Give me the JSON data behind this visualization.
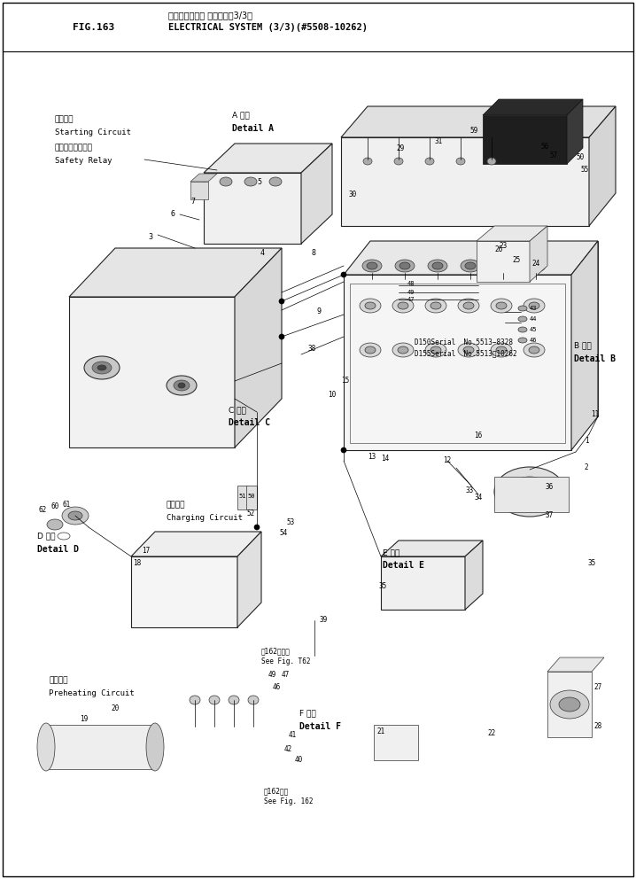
{
  "title_japanese": "エレクトリカル システム（3/3）",
  "title_english": "ELECTRICAL SYSTEM (3/3)(#5508-10262)",
  "fig_label": "FIG.163",
  "bg_color": "#ffffff",
  "line_color": "#000000",
  "fig_width": 7.18,
  "fig_height": 9.92,
  "dpi": 100,
  "starting_circuit_jp": "起動回路",
  "starting_circuit_en": "Starting Circuit",
  "safety_relay_jp": "セーフティリレー",
  "safety_relay_en": "Safety Relay",
  "detail_a_jp": "A 詳細",
  "detail_a_en": "Detail A",
  "detail_b_jp": "B 詳細",
  "detail_b_en": "Detail B",
  "detail_c_jp": "C 詳細",
  "detail_c_en": "Detail C",
  "detail_d_jp": "D 詳細",
  "detail_d_en": "Detail D",
  "detail_e_jp": "E 詳細",
  "detail_e_en": "Detail E",
  "detail_f_jp": "F 詳細",
  "detail_f_en": "Detail F",
  "charging_circuit_jp": "充電回路",
  "charging_circuit_en": "Charging Circuit",
  "preheating_circuit_jp": "予熱回路",
  "preheating_circuit_en": "Preheating Circuit",
  "see_fig162_jp": "第162図参照",
  "see_fig162_en": "See Fig. T62",
  "see_fig162_jp2": "第162図参",
  "see_fig162_en2": "See Fig. 162",
  "d150_serial": "D150Serial  No.5513−8328",
  "d155_serial": "D155Serial  No.5513～10262"
}
